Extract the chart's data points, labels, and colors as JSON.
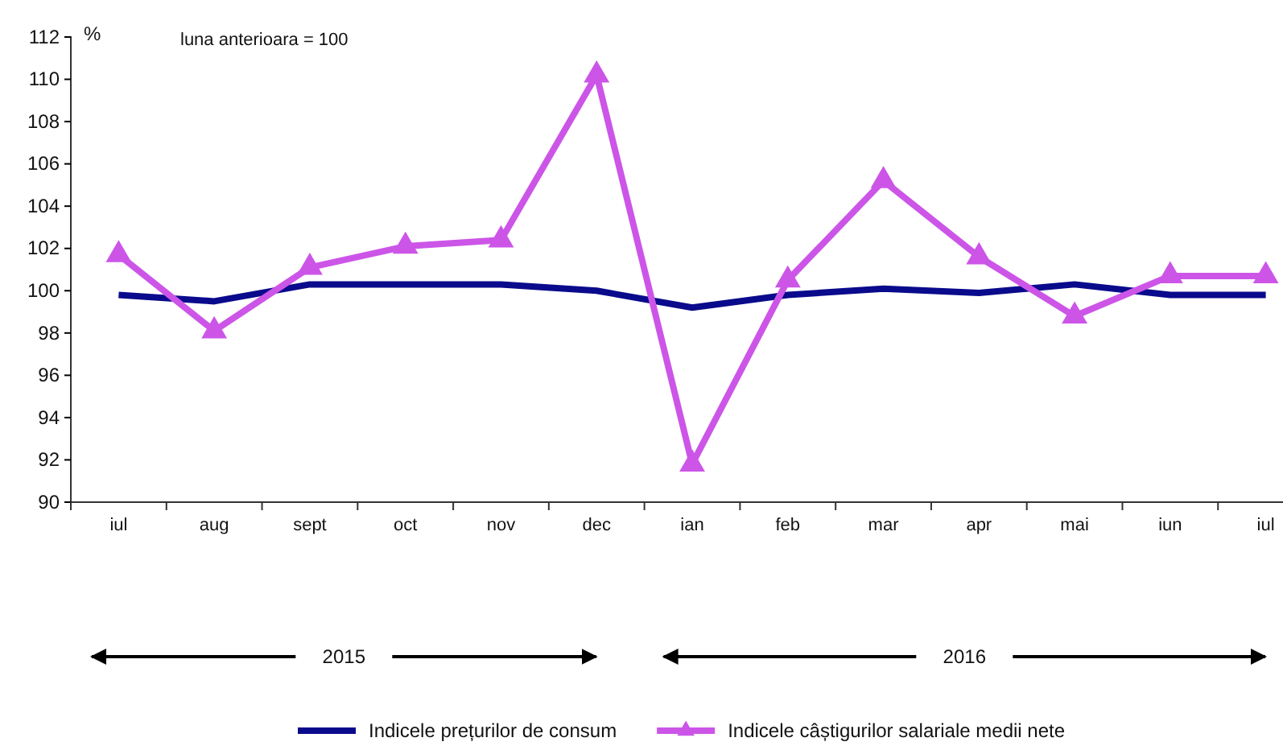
{
  "chart_data": {
    "type": "line",
    "categories": [
      "iul",
      "aug",
      "sept",
      "oct",
      "nov",
      "dec",
      "ian",
      "feb",
      "mar",
      "apr",
      "mai",
      "iun",
      "iul"
    ],
    "series": [
      {
        "name": "Indicele prețurilor de consum",
        "color": "#0a0a8c",
        "values": [
          99.8,
          99.5,
          100.3,
          100.3,
          100.3,
          100.0,
          99.2,
          99.8,
          100.1,
          99.9,
          100.3,
          99.8,
          99.8
        ]
      },
      {
        "name": "Indicele câștigurilor salariale medii nete",
        "color": "#cc55e8",
        "marker": "triangle",
        "values": [
          101.7,
          98.1,
          101.1,
          102.1,
          102.4,
          110.2,
          91.8,
          100.5,
          105.2,
          101.6,
          98.8,
          100.7,
          100.7
        ]
      }
    ],
    "ylim": [
      90,
      112
    ],
    "yticks": [
      90,
      92,
      94,
      96,
      98,
      100,
      102,
      104,
      106,
      108,
      110,
      112
    ],
    "ylabel": "%",
    "annotations": [
      "luna anterioara = 100",
      "2015",
      "2016"
    ],
    "grid": false,
    "legend": "bottom"
  }
}
